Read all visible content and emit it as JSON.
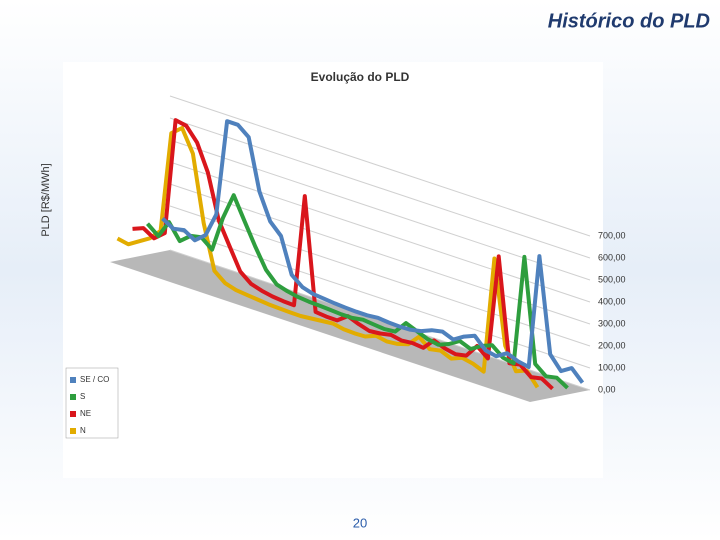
{
  "slide_title": "Histórico do PLD",
  "page_number": "20",
  "chart_data": {
    "type": "line",
    "title": "Evolução do PLD",
    "y_label": "PLD [R$/MWh]",
    "ylim": [
      0,
      700
    ],
    "yticks": [
      {
        "value": 0,
        "label": "0,00"
      },
      {
        "value": 100,
        "label": "100,00"
      },
      {
        "value": 200,
        "label": "200,00"
      },
      {
        "value": 300,
        "label": "300,00"
      },
      {
        "value": 400,
        "label": "400,00"
      },
      {
        "value": 500,
        "label": "500,00"
      },
      {
        "value": 600,
        "label": "600,00"
      },
      {
        "value": 700,
        "label": "700,00"
      }
    ],
    "grid": true,
    "legend": "bottom-left",
    "series": [
      {
        "name": "SE / CO",
        "color": "#4f81bd",
        "values": [
          150,
          120,
          130,
          100,
          140,
          250,
          690,
          690,
          650,
          420,
          300,
          250,
          90,
          50,
          35,
          30,
          25,
          22,
          20,
          20,
          25,
          20,
          18,
          20,
          30,
          50,
          60,
          40,
          70,
          90,
          40,
          30,
          60,
          40,
          30,
          550,
          120,
          60,
          90,
          40
        ]
      },
      {
        "name": "S",
        "color": "#2e9e3e",
        "values": [
          140,
          100,
          180,
          110,
          150,
          160,
          120,
          280,
          400,
          300,
          200,
          110,
          60,
          45,
          35,
          30,
          28,
          25,
          22,
          22,
          30,
          25,
          20,
          25,
          80,
          60,
          40,
          30,
          50,
          80,
          60,
          90,
          110,
          70,
          60,
          560,
          90,
          50,
          60,
          30
        ]
      },
      {
        "name": "NE",
        "color": "#d9161c",
        "values": [
          130,
          150,
          120,
          160,
          690,
          680,
          620,
          500,
          300,
          200,
          100,
          60,
          45,
          35,
          30,
          28,
          540,
          30,
          25,
          24,
          60,
          40,
          25,
          30,
          40,
          30,
          35,
          30,
          80,
          60,
          50,
          60,
          120,
          80,
          560,
          90,
          100,
          60,
          70,
          40
        ]
      },
      {
        "name": "N",
        "color": "#e2ac00",
        "values": [
          100,
          90,
          120,
          150,
          200,
          660,
          700,
          600,
          300,
          100,
          60,
          45,
          40,
          35,
          30,
          28,
          26,
          25,
          30,
          35,
          40,
          30,
          28,
          30,
          50,
          40,
          45,
          60,
          110,
          70,
          80,
          60,
          80,
          70,
          50,
          580,
          200,
          100,
          120,
          60
        ]
      }
    ]
  }
}
